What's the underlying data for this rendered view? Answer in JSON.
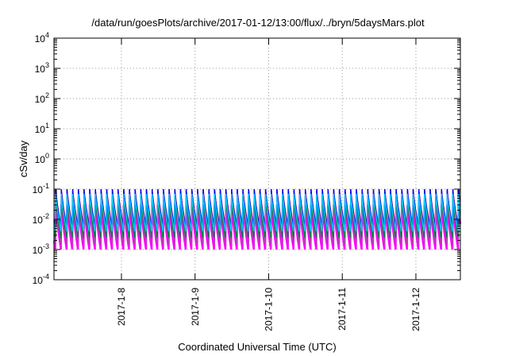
{
  "chart_data": {
    "type": "line",
    "title": "/data/run/goesPlots/archive/2017-01-12/13:00/flux/../bryn/5daysMars.plot",
    "xlabel": "Coordinated Universal Time (UTC)",
    "ylabel": "cSv/day",
    "yscale": "log",
    "ylim": [
      0.0001,
      10000
    ],
    "xlim": [
      "2017-01-07 02:00",
      "2017-01-12 14:30"
    ],
    "y_ticks": [
      {
        "base": "10",
        "exp": "4"
      },
      {
        "base": "10",
        "exp": "3"
      },
      {
        "base": "10",
        "exp": "2"
      },
      {
        "base": "10",
        "exp": "1"
      },
      {
        "base": "10",
        "exp": "0"
      },
      {
        "base": "10",
        "exp": "-1"
      },
      {
        "base": "10",
        "exp": "-2"
      },
      {
        "base": "10",
        "exp": "-3"
      },
      {
        "base": "10",
        "exp": "-4"
      }
    ],
    "x_ticks": [
      "2017-1-8",
      "2017-1-9",
      "2017-1-10",
      "2017-1-11",
      "2017-1-12"
    ],
    "grid": true,
    "legend": "none",
    "series_colors": [
      "#ff00ff",
      "#b040b0",
      "#ff0000",
      "#00a0a0",
      "#0000ff",
      "#008040",
      "#00c8ff"
    ],
    "oscillation_period_hours": 1.85,
    "series": [
      {
        "color": "#ff00ff",
        "peak": 0.03,
        "trough": 0.001
      },
      {
        "color": "#b040b0",
        "peak": 0.04,
        "trough": 0.0015
      },
      {
        "color": "#ff0000",
        "peak": 0.1,
        "trough": 0.006
      },
      {
        "color": "#00a0a0",
        "peak": 0.06,
        "trough": 0.003
      },
      {
        "color": "#0000ff",
        "peak": 0.1,
        "trough": 0.005
      },
      {
        "color": "#008040",
        "peak": 0.05,
        "trough": 0.0025
      },
      {
        "color": "#00c8ff",
        "peak": 0.07,
        "trough": 0.004
      }
    ]
  }
}
